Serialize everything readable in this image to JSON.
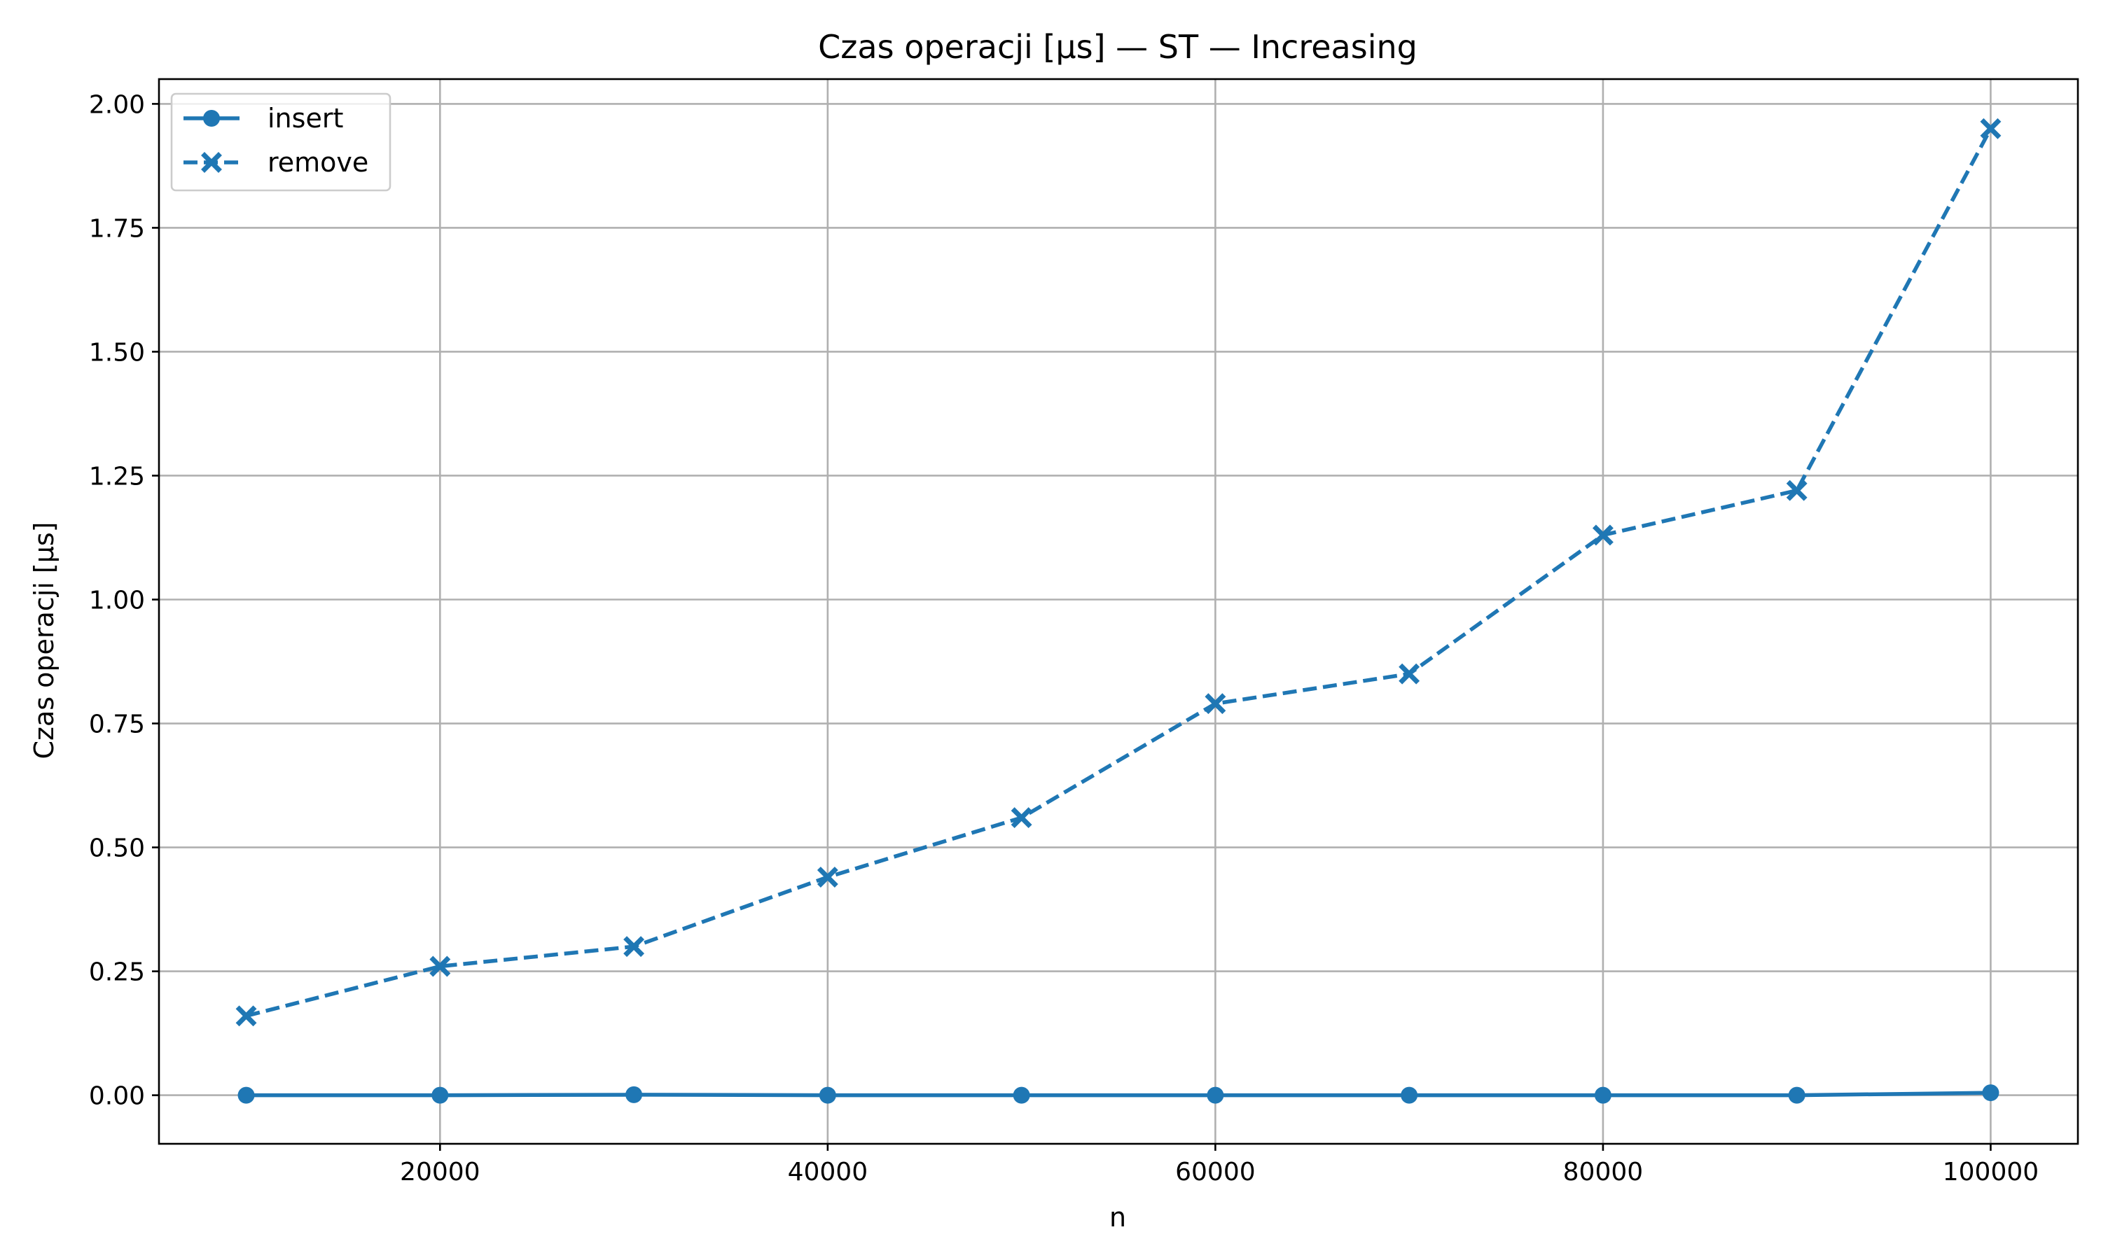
{
  "chart_data": {
    "type": "line",
    "title": "Czas operacji [µs] — ST — Increasing",
    "xlabel": "n",
    "ylabel": "Czas operacji [µs]",
    "x": [
      10000,
      20000,
      30000,
      40000,
      50000,
      60000,
      70000,
      80000,
      90000,
      100000
    ],
    "xlim": [
      5500,
      104500
    ],
    "ylim": [
      -0.098,
      2.05
    ],
    "xticks": [
      20000,
      40000,
      60000,
      80000,
      100000
    ],
    "yticks": [
      0.0,
      0.25,
      0.5,
      0.75,
      1.0,
      1.25,
      1.5,
      1.75,
      2.0
    ],
    "xtick_labels": [
      "20000",
      "40000",
      "60000",
      "80000",
      "100000"
    ],
    "ytick_labels": [
      "0.00",
      "0.25",
      "0.50",
      "0.75",
      "1.00",
      "1.25",
      "1.50",
      "1.75",
      "2.00"
    ],
    "grid": true,
    "legend_position": "top-left",
    "series": [
      {
        "name": "insert",
        "marker": "circle",
        "line_style": "solid",
        "color": "#1f77b4",
        "values": [
          0.0,
          0.0,
          0.001,
          0.0,
          0.0,
          0.0,
          0.0,
          0.0,
          0.0,
          0.005
        ]
      },
      {
        "name": "remove",
        "marker": "x",
        "line_style": "dashed",
        "color": "#1f77b4",
        "values": [
          0.16,
          0.26,
          0.3,
          0.44,
          0.56,
          0.79,
          0.85,
          1.13,
          1.22,
          1.95
        ]
      }
    ]
  }
}
